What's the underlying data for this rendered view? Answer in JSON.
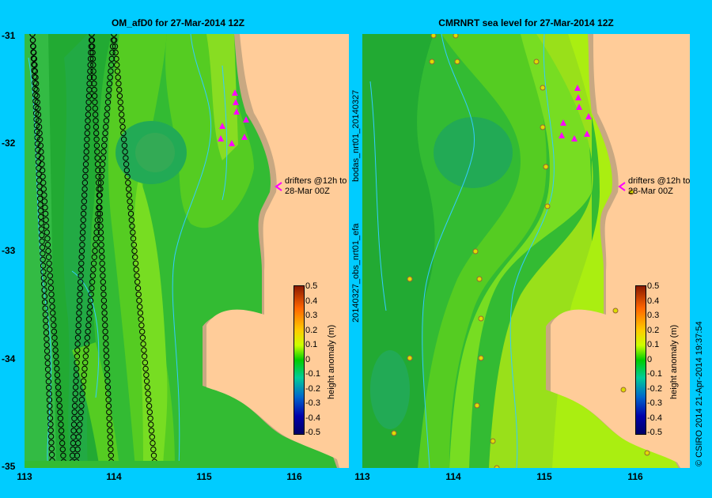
{
  "panels": [
    {
      "title": "OM_afD0 for 27-Mar-2014 12Z"
    },
    {
      "title": "CMRNRT sea level  for 27-Mar-2014 12Z"
    }
  ],
  "axes": {
    "x_ticks": [
      "113",
      "114",
      "115",
      "116"
    ],
    "y_ticks": [
      "-31",
      "-32",
      "-33",
      "-34",
      "-35"
    ],
    "lon_range": [
      113,
      116.6
    ],
    "lat_range": [
      -35,
      -31
    ]
  },
  "annotation": {
    "line1": "drifters @12h to",
    "line2": "28-Mar 00Z"
  },
  "colorbar": {
    "label": "height anomaly (m)",
    "ticks": [
      "0.5",
      "0.4",
      "0.3",
      "0.2",
      "0.1",
      "0",
      "-0.1",
      "-0.2",
      "-0.3",
      "-0.4",
      "-0.5"
    ],
    "range": [
      -0.5,
      0.5
    ],
    "colors": {
      "high": "#8b1a00",
      "mid_high": "#ffff00",
      "zero": "#00cc00",
      "mid_low": "#00cccc",
      "low": "#000066"
    }
  },
  "left_vertical_text": "20140327_obs_nrt01_efa",
  "left_vertical_text2": "bodas_nrt01_20140327",
  "right_vertical_text": "© CSIRO 2014    21-Apr-2014 19:37:54",
  "colors": {
    "land": "#ffcc99",
    "shelf": "#c8a882",
    "background": "#00ccff",
    "drifter": "#ff00ff",
    "contour": "#33ccff"
  }
}
